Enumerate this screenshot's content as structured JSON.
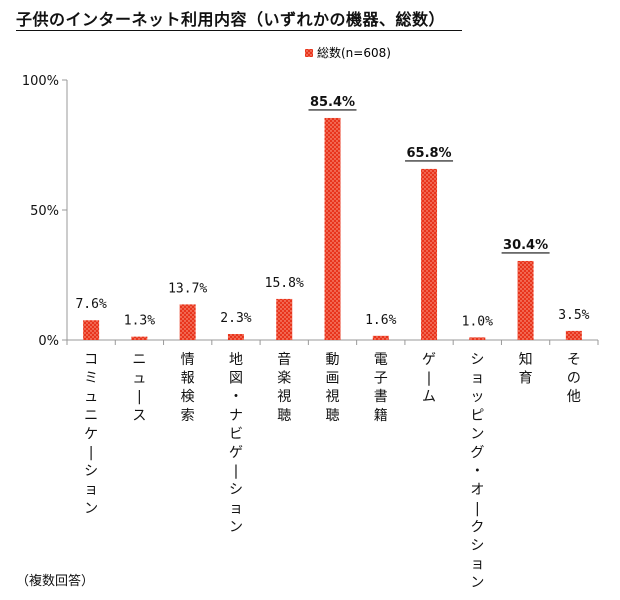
{
  "chart_data": {
    "type": "bar",
    "title": "子供のインターネット利用内容（いずれかの機器、総数）",
    "xlabel": "",
    "ylabel": "",
    "ylim": [
      0,
      100
    ],
    "y_ticks": [
      0,
      50,
      100
    ],
    "y_tick_labels": [
      "0%",
      "50%",
      "100%"
    ],
    "grid": false,
    "legend_position": "top",
    "categories": [
      "コミュニケーション",
      "ニュース",
      "情報検索",
      "地図・ナビゲーション",
      "音楽視聴",
      "動画視聴",
      "電子書籍",
      "ゲーム",
      "ショッピング・オークション",
      "知育",
      "その他"
    ],
    "series": [
      {
        "name": "総数(n=608)",
        "values": [
          7.6,
          1.3,
          13.7,
          2.3,
          15.8,
          85.4,
          1.6,
          65.8,
          1.0,
          30.4,
          3.5
        ],
        "labels": [
          "7.6%",
          "1.3%",
          "13.7%",
          "2.3%",
          "15.8%",
          "85.4%",
          "1.6%",
          "65.8%",
          "1.0%",
          "30.4%",
          "3.5%"
        ],
        "highlighted": [
          false,
          false,
          false,
          false,
          false,
          true,
          false,
          true,
          false,
          true,
          false
        ]
      }
    ],
    "colors": {
      "bar_fill": "#e8341c",
      "bar_dot": "#ffb3a0",
      "axis": "#999999",
      "text": "#111111"
    }
  },
  "footnote": "（複数回答）"
}
